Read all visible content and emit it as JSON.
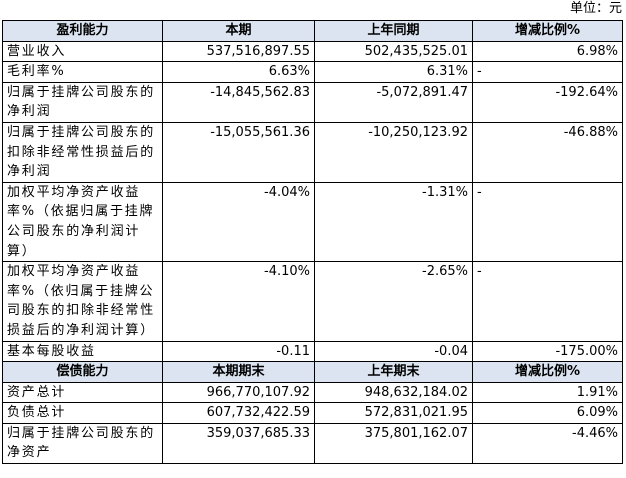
{
  "unit": "单位：元",
  "table": {
    "sections": [
      {
        "header": [
          "盈利能力",
          "本期",
          "上年同期",
          "增减比例%"
        ],
        "rows": [
          [
            "营业收入",
            "537,516,897.55",
            "502,435,525.01",
            "6.98%"
          ],
          [
            "毛利率%",
            "6.63%",
            "6.31%",
            "-"
          ],
          [
            "归属于挂牌公司股东的净利润",
            "-14,845,562.83",
            "-5,072,891.47",
            "-192.64%"
          ],
          [
            "归属于挂牌公司股东的扣除非经常性损益后的净利润",
            "-15,055,561.36",
            "-10,250,123.92",
            "-46.88%"
          ],
          [
            "加权平均净资产收益率%（依据归属于挂牌公司股东的净利润计算）",
            "-4.04%",
            "-1.31%",
            "-"
          ],
          [
            "加权平均净资产收益率%（依归属于挂牌公司股东的扣除非经常性损益后的净利润计算）",
            "-4.10%",
            "-2.65%",
            "-"
          ],
          [
            "基本每股收益",
            "-0.11",
            "-0.04",
            "-175.00%"
          ]
        ]
      },
      {
        "header": [
          "偿债能力",
          "本期期末",
          "上年期末",
          "增减比例%"
        ],
        "rows": [
          [
            "资产总计",
            "966,770,107.92",
            "948,632,184.02",
            "1.91%"
          ],
          [
            "负债总计",
            "607,732,422.59",
            "572,831,021.95",
            "6.09%"
          ],
          [
            "归属于挂牌公司股东的净资产",
            "359,037,685.33",
            "375,801,162.07",
            "-4.46%"
          ]
        ]
      }
    ]
  }
}
